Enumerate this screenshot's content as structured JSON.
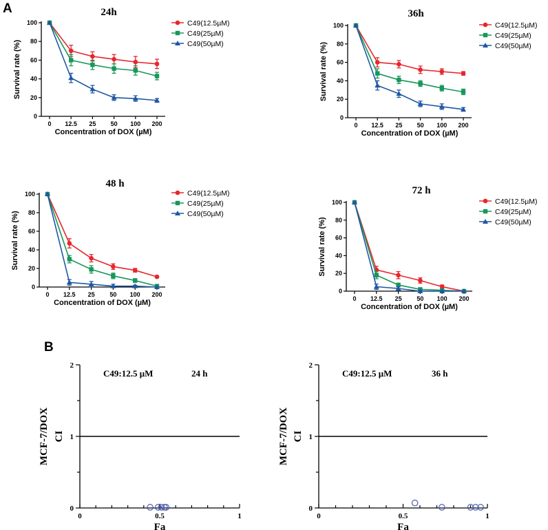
{
  "panels": {
    "a": "A",
    "b": "B"
  },
  "chart_data": [
    {
      "type": "line",
      "title": "24h",
      "xlabel": "Concentration of DOX (µM)",
      "ylabel": "Survival rate (%)",
      "categories": [
        "0",
        "12.5",
        "25",
        "50",
        "100",
        "200"
      ],
      "ylim": [
        0,
        100
      ],
      "yticks": [
        0,
        20,
        40,
        60,
        80,
        100
      ],
      "series": [
        {
          "name": "C49(12.5µM)",
          "color": "#e8262c",
          "marker": "circle",
          "values": [
            100,
            70,
            64,
            61,
            58,
            56
          ],
          "errors": [
            0,
            6,
            5,
            5,
            6,
            5
          ]
        },
        {
          "name": "C49(25µM)",
          "color": "#17975a",
          "marker": "square",
          "values": [
            100,
            60,
            55,
            51,
            49,
            43
          ],
          "errors": [
            0,
            6,
            5,
            5,
            5,
            4
          ]
        },
        {
          "name": "C49(50µM)",
          "color": "#1f57a4",
          "marker": "triangle",
          "values": [
            100,
            41,
            29,
            20,
            19,
            17
          ],
          "errors": [
            0,
            5,
            4,
            3,
            3,
            2
          ]
        }
      ]
    },
    {
      "type": "line",
      "title": "36h",
      "xlabel": "Concentration of DOX (µM)",
      "ylabel": "Survival rate (%)",
      "categories": [
        "0",
        "12.5",
        "25",
        "50",
        "100",
        "200"
      ],
      "ylim": [
        0,
        100
      ],
      "yticks": [
        0,
        20,
        40,
        60,
        80,
        100
      ],
      "series": [
        {
          "name": "C49(12.5µM)",
          "color": "#e8262c",
          "marker": "circle",
          "values": [
            100,
            60,
            58,
            52,
            50,
            48
          ],
          "errors": [
            0,
            5,
            4,
            4,
            3,
            2
          ]
        },
        {
          "name": "C49(25µM)",
          "color": "#17975a",
          "marker": "square",
          "values": [
            100,
            48,
            41,
            37,
            32,
            28
          ],
          "errors": [
            0,
            5,
            4,
            3,
            3,
            3
          ]
        },
        {
          "name": "C49(50µM)",
          "color": "#1f57a4",
          "marker": "triangle",
          "values": [
            100,
            35,
            26,
            15,
            12,
            9
          ],
          "errors": [
            0,
            5,
            4,
            3,
            3,
            2
          ]
        }
      ]
    },
    {
      "type": "line",
      "title": "48 h",
      "xlabel": "Concentration of DOX (µM)",
      "ylabel": "Survival rate (%)",
      "categories": [
        "0",
        "12.5",
        "25",
        "50",
        "100",
        "200"
      ],
      "ylim": [
        0,
        100
      ],
      "yticks": [
        0,
        20,
        40,
        60,
        80,
        100
      ],
      "series": [
        {
          "name": "C49(12.5µM)",
          "color": "#e8262c",
          "marker": "circle",
          "values": [
            100,
            47,
            31,
            22,
            18,
            11
          ],
          "errors": [
            0,
            5,
            4,
            3,
            2,
            1
          ]
        },
        {
          "name": "C49(25µM)",
          "color": "#17975a",
          "marker": "square",
          "values": [
            100,
            30,
            19,
            12,
            7,
            1
          ],
          "errors": [
            0,
            4,
            4,
            3,
            2,
            1
          ]
        },
        {
          "name": "C49(50µM)",
          "color": "#1f57a4",
          "marker": "triangle",
          "values": [
            100,
            5,
            3,
            1,
            1,
            0
          ],
          "errors": [
            0,
            3,
            3,
            2,
            1,
            0
          ]
        }
      ]
    },
    {
      "type": "line",
      "title": "72 h",
      "xlabel": "Concentration of DOX (µM)",
      "ylabel": "Survival rate (%)",
      "categories": [
        "0",
        "12.5",
        "25",
        "50",
        "100",
        "200"
      ],
      "ylim": [
        0,
        100
      ],
      "yticks": [
        0,
        20,
        40,
        60,
        80,
        100
      ],
      "series": [
        {
          "name": "C49(12.5µM)",
          "color": "#e8262c",
          "marker": "circle",
          "values": [
            100,
            24,
            18,
            12,
            5,
            0
          ],
          "errors": [
            0,
            4,
            4,
            3,
            2,
            0
          ]
        },
        {
          "name": "C49(25µM)",
          "color": "#17975a",
          "marker": "square",
          "values": [
            100,
            18,
            7,
            2,
            1,
            0
          ],
          "errors": [
            0,
            4,
            2,
            1,
            1,
            0
          ]
        },
        {
          "name": "C49(50µM)",
          "color": "#1f57a4",
          "marker": "triangle",
          "values": [
            100,
            5,
            3,
            0,
            0,
            0
          ],
          "errors": [
            0,
            3,
            2,
            1,
            0,
            0
          ]
        }
      ]
    },
    {
      "type": "scatter",
      "title": "24 h",
      "annotation": "C49:12.5 μM",
      "xlabel": "Fa",
      "ylabel": "CI",
      "side_label": "MCF-7/DOX",
      "xlim": [
        0,
        1
      ],
      "ylim": [
        0,
        2
      ],
      "xticks": [
        "0",
        "0.5",
        "1"
      ],
      "yticks": [
        "0",
        "1",
        "2"
      ],
      "reference_line": 1,
      "marker_color": "#4a5bb0",
      "points": [
        {
          "x": 0.44,
          "y": 0.01
        },
        {
          "x": 0.49,
          "y": 0.01
        },
        {
          "x": 0.51,
          "y": 0.01
        },
        {
          "x": 0.53,
          "y": 0.01
        },
        {
          "x": 0.54,
          "y": 0.01
        }
      ]
    },
    {
      "type": "scatter",
      "title": "36 h",
      "annotation": "C49:12.5 μM",
      "xlabel": "Fa",
      "ylabel": "CI",
      "side_label": "MCF-7/DOX",
      "xlim": [
        0,
        1
      ],
      "ylim": [
        0,
        2
      ],
      "xticks": [
        "0",
        "0.5",
        "1"
      ],
      "yticks": [
        "0",
        "1",
        "2"
      ],
      "reference_line": 1,
      "marker_color": "#4a5bb0",
      "points": [
        {
          "x": 0.57,
          "y": 0.07
        },
        {
          "x": 0.73,
          "y": 0.01
        },
        {
          "x": 0.9,
          "y": 0.01
        },
        {
          "x": 0.93,
          "y": 0.01
        },
        {
          "x": 0.96,
          "y": 0.01
        }
      ]
    }
  ]
}
